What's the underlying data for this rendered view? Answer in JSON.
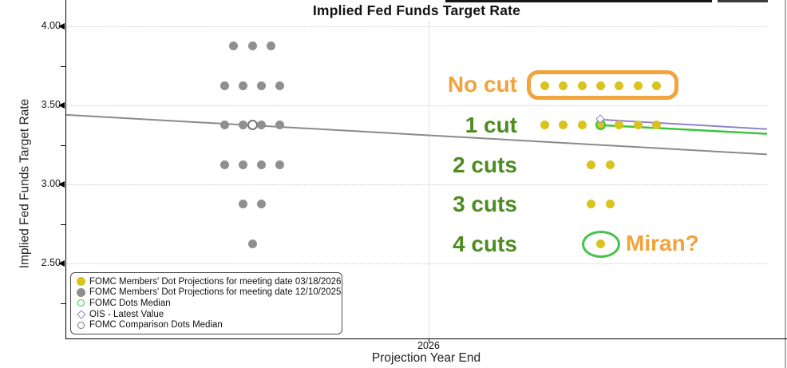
{
  "title": "Implied Fed Funds Target Rate",
  "axes": {
    "y_label": "Implied Fed Funds Target Rate",
    "x_label": "Projection Year End",
    "x_tick": "2026",
    "y_ticks": [
      {
        "label": "4.00",
        "value": 4.0
      },
      {
        "label": "3.50",
        "value": 3.5
      },
      {
        "label": "3.00",
        "value": 3.0
      },
      {
        "label": "2.50",
        "value": 2.5
      }
    ],
    "y_minor_tick_values": [
      3.75,
      3.25,
      2.75,
      2.25
    ]
  },
  "chart_data": {
    "type": "scatter",
    "title": "Implied Fed Funds Target Rate",
    "xlabel": "Projection Year End",
    "ylabel": "Implied Fed Funds Target Rate",
    "x_categories": [
      "2026"
    ],
    "ylim": [
      2.25,
      4.05
    ],
    "grid": "dotted-horizontal",
    "series": [
      {
        "name": "FOMC Members' Dot Projections for meeting date 03/18/2026",
        "meeting_date": "03/18/2026",
        "color": "#d9c31f",
        "cluster": "right",
        "dot_counts": [
          {
            "rate": 3.625,
            "count": 7
          },
          {
            "rate": 3.375,
            "count": 7
          },
          {
            "rate": 3.125,
            "count": 2
          },
          {
            "rate": 2.875,
            "count": 2
          },
          {
            "rate": 2.625,
            "count": 1
          }
        ]
      },
      {
        "name": "FOMC Members' Dot Projections for meeting date 12/10/2025",
        "meeting_date": "12/10/2025",
        "color": "#8f8f8f",
        "cluster": "left",
        "dot_counts": [
          {
            "rate": 3.875,
            "count": 3
          },
          {
            "rate": 3.625,
            "count": 4
          },
          {
            "rate": 3.375,
            "count": 4
          },
          {
            "rate": 3.125,
            "count": 4
          },
          {
            "rate": 2.875,
            "count": 2
          },
          {
            "rate": 2.625,
            "count": 1
          }
        ]
      }
    ],
    "lines": [
      {
        "name": "FOMC Comparison Dots Median",
        "color": "#8a8a8a",
        "span": "full",
        "start_rate": 3.44,
        "end_rate": 3.19,
        "width": 2
      },
      {
        "name": "OIS - Latest Value",
        "color": "#9184C4",
        "span": "forward",
        "start_rate": 3.41,
        "end_rate": 3.35,
        "width": 2
      },
      {
        "name": "FOMC Dots Median",
        "color": "#3ec43e",
        "span": "forward",
        "start_rate": 3.375,
        "end_rate": 3.32,
        "width": 2.5
      }
    ],
    "markers": [
      {
        "name": "FOMC Dots Median",
        "shape": "open-circle",
        "color": "#3ec43e",
        "fill": "transparent",
        "rate": 3.375,
        "cluster": "right"
      },
      {
        "name": "OIS - Latest Value",
        "shape": "open-diamond",
        "color": "#9184C4",
        "fill": "#ffffff",
        "rate": 3.41,
        "cluster": "right"
      },
      {
        "name": "FOMC Comparison Dots Median",
        "shape": "open-circle",
        "color": "#777777",
        "fill": "#ffffff",
        "rate": 3.375,
        "cluster": "left"
      }
    ]
  },
  "annotations": {
    "no_cut": "No cut",
    "one_cut": "1 cut",
    "two_cuts": "2 cuts",
    "three_cuts": "3 cuts",
    "four_cuts": "4 cuts",
    "miran": "Miran?",
    "colors": {
      "orange": "#F1A33C",
      "green": "#4D8C21"
    }
  },
  "legend": {
    "items": [
      {
        "label": "FOMC Members' Dot Projections for meeting date 03/18/2026",
        "marker": "filled-circle",
        "color": "#d9c31f"
      },
      {
        "label": "FOMC Members' Dot Projections for meeting date 12/10/2025",
        "marker": "filled-circle",
        "color": "#8f8f8f"
      },
      {
        "label": "FOMC Dots Median",
        "marker": "open-circle",
        "color": "#3ec43e"
      },
      {
        "label": "OIS - Latest Value",
        "marker": "open-diamond",
        "color": "#9184C4"
      },
      {
        "label": "FOMC Comparison Dots Median",
        "marker": "open-circle",
        "color": "#777777"
      }
    ]
  }
}
